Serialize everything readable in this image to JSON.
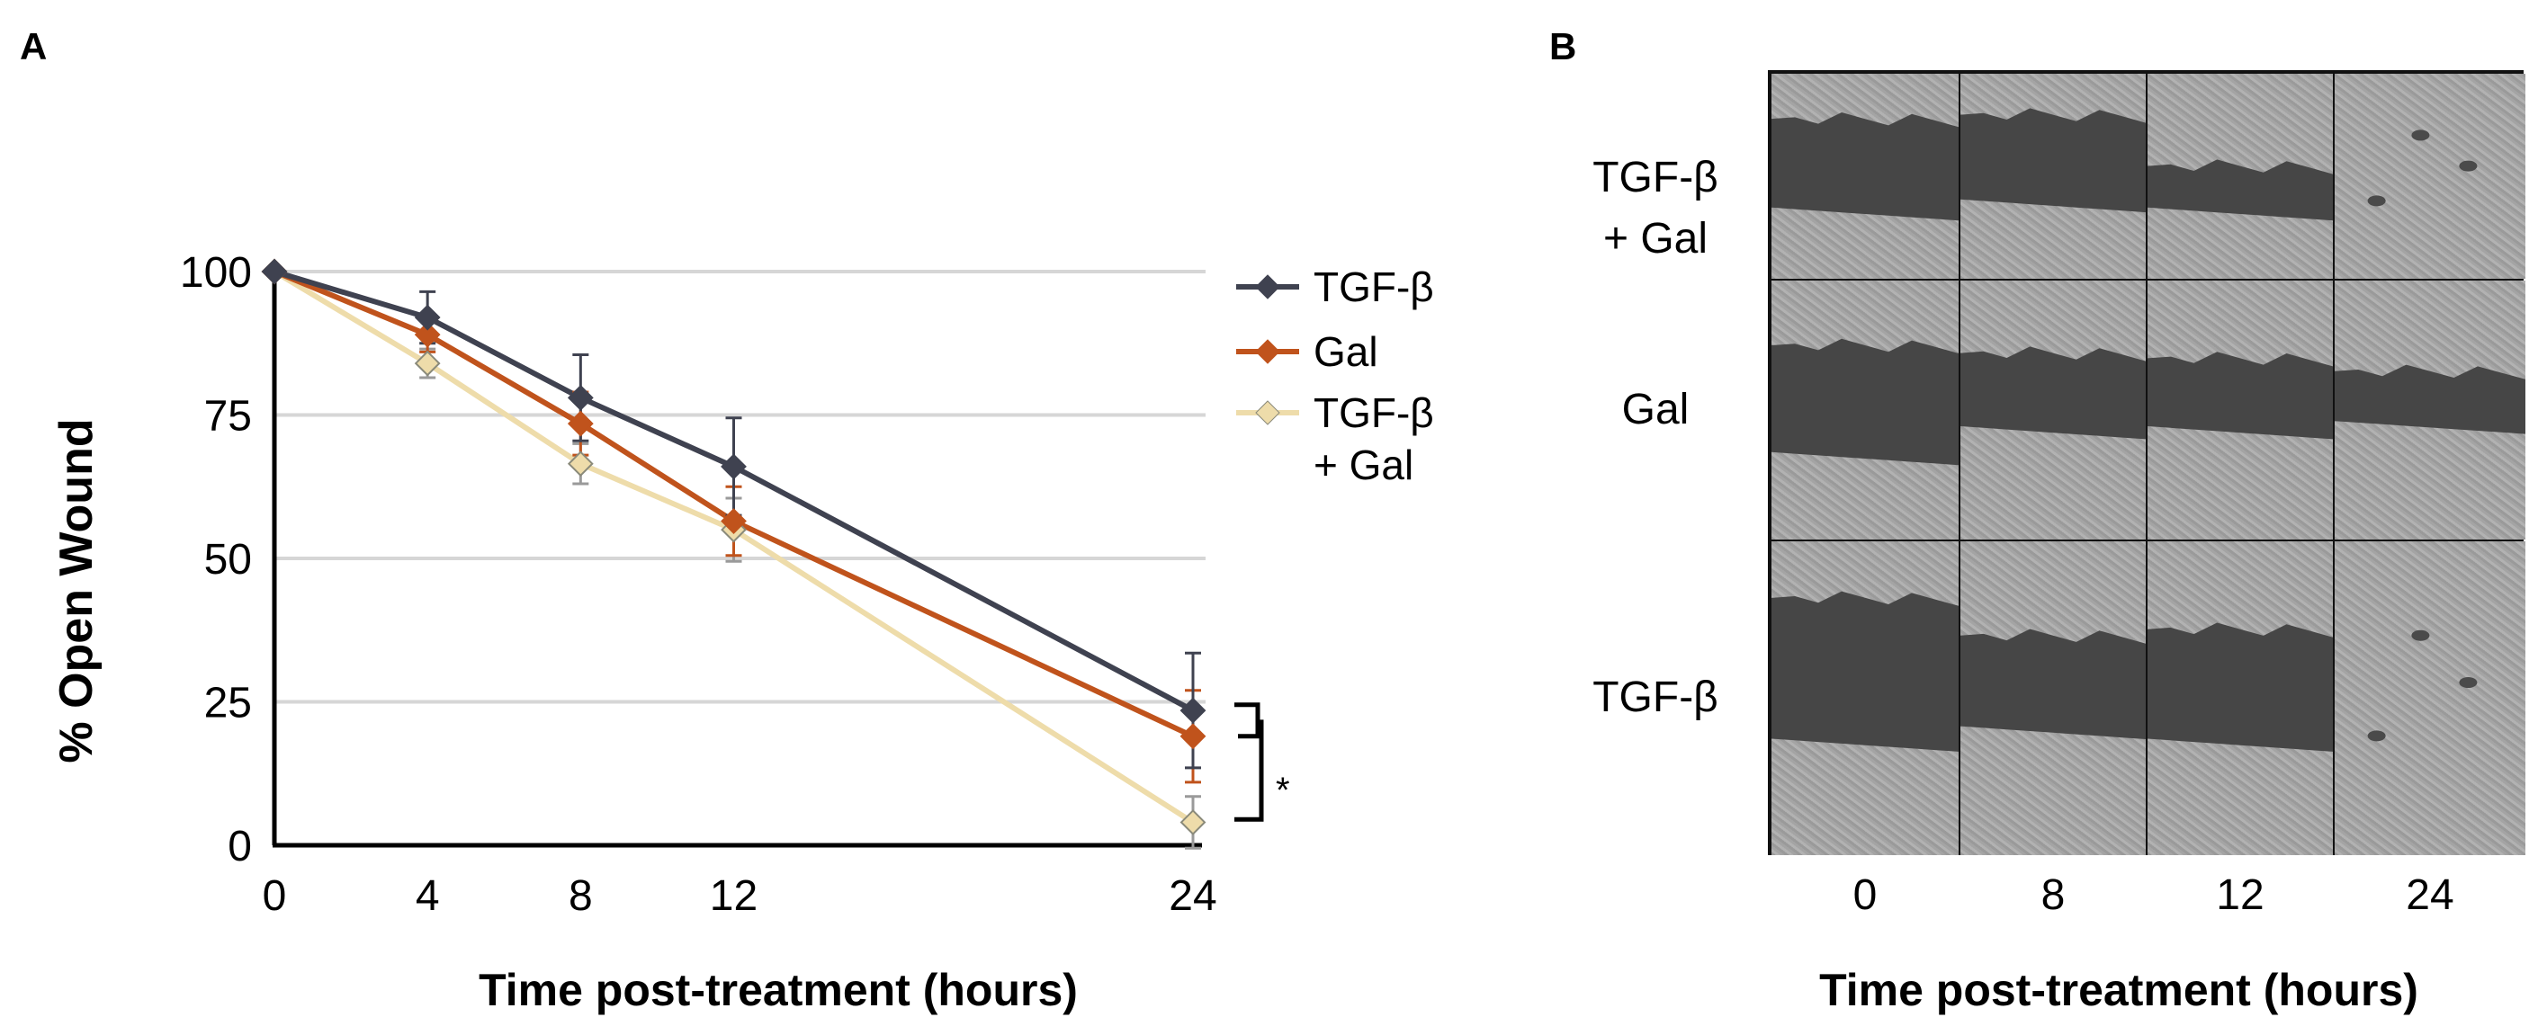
{
  "panel_a_letter": "A",
  "panel_b_letter": "B",
  "significance": "*",
  "chart_data": {
    "type": "line",
    "title": "",
    "xlabel": "Time post-treatment (hours)",
    "ylabel": "% Open Wound",
    "x": [
      0,
      4,
      8,
      12,
      24
    ],
    "xticks": [
      "0",
      "4",
      "8",
      "12",
      "24"
    ],
    "yticks": [
      "0",
      "25",
      "50",
      "75",
      "100"
    ],
    "ylim": [
      0,
      100
    ],
    "xlim": [
      0,
      24
    ],
    "grid": true,
    "legend_position": "right",
    "series": [
      {
        "name": "TGF-β",
        "color": "#3f4250",
        "values": [
          100,
          92,
          78,
          66,
          23.5
        ],
        "errors": [
          0,
          4.5,
          7.5,
          8.5,
          10
        ]
      },
      {
        "name": "Gal",
        "color": "#c0531c",
        "values": [
          100,
          89,
          73.5,
          56.5,
          19
        ],
        "errors": [
          0,
          3,
          5.5,
          6,
          8
        ]
      },
      {
        "name": "TGF-β\n+ Gal",
        "color": "#eedcaa",
        "values": [
          100,
          84,
          66.5,
          55,
          4
        ],
        "errors": [
          0,
          2.5,
          3.5,
          5.5,
          4.5
        ]
      }
    ]
  },
  "panel_b": {
    "xlabel": "Time post-treatment (hours)",
    "columns": [
      "0",
      "8",
      "12",
      "24"
    ],
    "rows": [
      {
        "label_line1": "TGF-β",
        "label_line2": "+ Gal"
      },
      {
        "label_line1": "Gal",
        "label_line2": ""
      },
      {
        "label_line1": "TGF-β",
        "label_line2": ""
      }
    ]
  }
}
